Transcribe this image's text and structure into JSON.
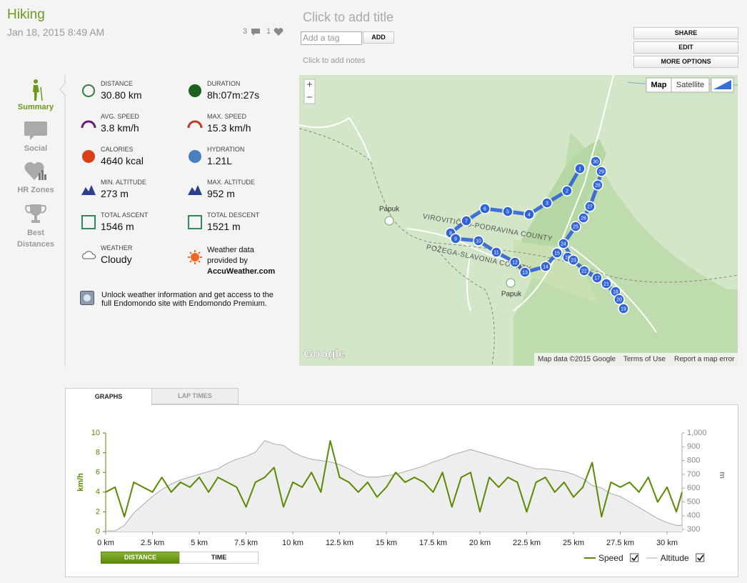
{
  "header": {
    "activity": "Hiking",
    "date": "Jan 18, 2015 8:49 AM",
    "comments": "3",
    "likes": "1",
    "title_placeholder": "Click to add title",
    "tag_placeholder": "Add a tag",
    "add_button": "ADD",
    "notes_placeholder": "Click to add notes"
  },
  "actions": [
    "SHARE",
    "EDIT",
    "MORE OPTIONS"
  ],
  "sidebar": [
    "Summary",
    "Social",
    "HR Zones",
    "Best Distances"
  ],
  "stats": [
    {
      "label": "DISTANCE",
      "value": "30.80 km"
    },
    {
      "label": "DURATION",
      "value": "8h:07m:27s"
    },
    {
      "label": "AVG. SPEED",
      "value": "3.8 km/h"
    },
    {
      "label": "MAX. SPEED",
      "value": "15.3 km/h"
    },
    {
      "label": "CALORIES",
      "value": "4640 kcal"
    },
    {
      "label": "HYDRATION",
      "value": "1.21L"
    },
    {
      "label": "MIN. ALTITUDE",
      "value": "273 m"
    },
    {
      "label": "MAX. ALTITUDE",
      "value": "952 m"
    },
    {
      "label": "TOTAL ASCENT",
      "value": "1546 m"
    },
    {
      "label": "TOTAL DESCENT",
      "value": "1521 m"
    },
    {
      "label": "WEATHER",
      "value": "Cloudy"
    }
  ],
  "weather_credit": {
    "lines": [
      "Weather data",
      "provided by"
    ],
    "source": "AccuWeather.com"
  },
  "premium_note": "Unlock weather information and get access to the full Endomondo site with Endomondo Premium.",
  "map": {
    "places": [
      "Papuk",
      "Papuk"
    ],
    "regions": [
      "VIROVITIČKO-PODRAVINA COUNTY",
      "POŽEGA-SLAVONIA COUNTY"
    ],
    "markers": [
      "1",
      "2",
      "3",
      "4",
      "5",
      "6",
      "7",
      "8",
      "9",
      "10",
      "11",
      "12",
      "13",
      "14",
      "15",
      "16",
      "17",
      "18",
      "19",
      "20",
      "21",
      "22",
      "23",
      "24",
      "25",
      "26",
      "27",
      "28",
      "29",
      "30"
    ],
    "zoom_in": "+",
    "zoom_out": "−",
    "map_button": "Map",
    "satellite_button": "Satellite",
    "logo": "Google",
    "attribution": "Map data ©2015 Google",
    "terms": "Terms of Use",
    "report": "Report a map error"
  },
  "tabs": [
    "GRAPHS",
    "LAP TIMES"
  ],
  "x_mode": [
    "DISTANCE",
    "TIME"
  ],
  "chart_data": {
    "type": "line",
    "ylabel": "km/h",
    "y2label": "m",
    "legend": "bottom-right",
    "x": [
      0,
      0.5,
      1,
      1.5,
      2,
      2.5,
      3,
      3.5,
      4,
      4.5,
      5,
      5.5,
      6,
      6.5,
      7,
      7.5,
      8,
      8.5,
      9,
      9.5,
      10,
      10.5,
      11,
      11.5,
      12,
      12.5,
      13,
      13.5,
      14,
      14.5,
      15,
      15.5,
      16,
      16.5,
      17,
      17.5,
      18,
      18.5,
      19,
      19.5,
      20,
      20.5,
      21,
      21.5,
      22,
      22.5,
      23,
      23.5,
      24,
      24.5,
      25,
      25.5,
      26,
      26.5,
      27,
      27.5,
      28,
      28.5,
      29,
      29.5,
      30,
      30.5,
      30.8
    ],
    "xlim": [
      0,
      30.8
    ],
    "xticks": [
      {
        "value": 0,
        "label": "0 km"
      },
      {
        "value": 2.5,
        "label": "2.5 km"
      },
      {
        "value": 5,
        "label": "5 km"
      },
      {
        "value": 7.5,
        "label": "7.5 km"
      },
      {
        "value": 10,
        "label": "10 km"
      },
      {
        "value": 12.5,
        "label": "12.5 km"
      },
      {
        "value": 15,
        "label": "15 km"
      },
      {
        "value": 17.5,
        "label": "17.5 km"
      },
      {
        "value": 20,
        "label": "20 km"
      },
      {
        "value": 22.5,
        "label": "22.5 km"
      },
      {
        "value": 25,
        "label": "25 km"
      },
      {
        "value": 27.5,
        "label": "27.5 km"
      },
      {
        "value": 30,
        "label": "30 km"
      }
    ],
    "ylim": [
      0,
      10
    ],
    "yticks": [
      0,
      2,
      4,
      6,
      8,
      10
    ],
    "y2lim": [
      285,
      1000
    ],
    "y2ticks": [
      300,
      400,
      500,
      600,
      700,
      800,
      900,
      {
        "value": 1000,
        "label": "1,000"
      }
    ],
    "series": [
      {
        "name": "Speed",
        "color": "#5a8a00",
        "values": [
          4,
          4.5,
          1.5,
          5,
          4.5,
          4,
          5.5,
          4,
          5,
          4.5,
          5.5,
          4,
          5.5,
          5,
          4.5,
          2.5,
          5,
          5.5,
          6.5,
          2.5,
          5,
          4.5,
          6,
          4,
          9.2,
          5.5,
          5,
          4,
          5,
          3.5,
          4.5,
          6,
          5,
          5.5,
          5,
          4,
          6,
          2.5,
          5.5,
          6,
          2,
          5.5,
          4.5,
          5.5,
          5,
          2,
          5,
          5.5,
          4,
          5,
          3.5,
          4.5,
          7,
          1.5,
          5,
          4.5,
          5,
          4,
          5.5,
          3,
          4.5,
          2,
          4
        ]
      },
      {
        "name": "Altitude",
        "color": "#aaaaaa",
        "fill": "#eeeeee",
        "axis": "y2",
        "values": [
          290,
          290,
          330,
          420,
          480,
          540,
          590,
          630,
          660,
          680,
          700,
          720,
          740,
          780,
          810,
          830,
          860,
          945,
          920,
          910,
          860,
          830,
          810,
          800,
          790,
          770,
          740,
          700,
          680,
          680,
          690,
          700,
          720,
          740,
          760,
          790,
          810,
          840,
          860,
          880,
          860,
          840,
          820,
          800,
          780,
          760,
          740,
          740,
          730,
          720,
          700,
          670,
          620,
          600,
          560,
          540,
          500,
          460,
          420,
          380,
          350,
          330,
          330
        ]
      }
    ]
  }
}
